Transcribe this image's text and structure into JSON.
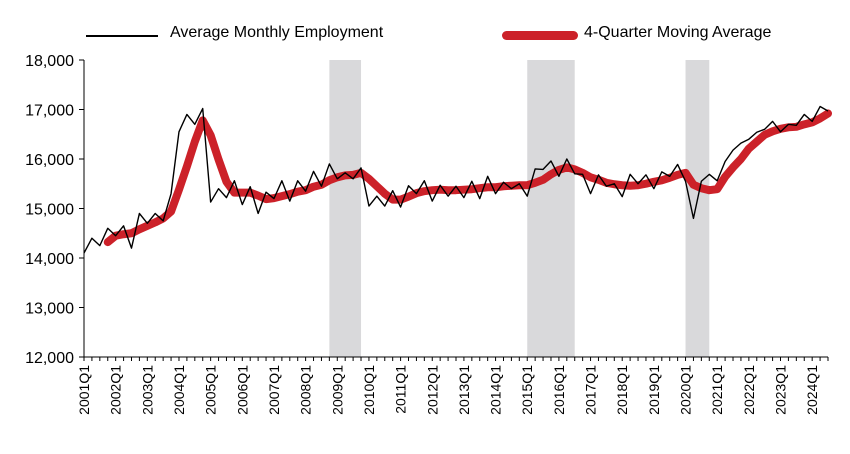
{
  "chart_data": {
    "type": "line",
    "xlabel": "",
    "ylabel": "",
    "ylim": [
      12000,
      18000
    ],
    "yticks": [
      "12,000",
      "13,000",
      "14,000",
      "15,000",
      "16,000",
      "17,000",
      "18,000"
    ],
    "ytick_values": [
      12000,
      13000,
      14000,
      15000,
      16000,
      17000,
      18000
    ],
    "xticks": [
      "2001Q1",
      "2002Q1",
      "2003Q1",
      "2004Q1",
      "2005Q1",
      "2006Q1",
      "2007Q1",
      "2008Q1",
      "2009Q1",
      "2010Q1",
      "2011Q1",
      "2012Q1",
      "2013Q1",
      "2014Q1",
      "2015Q1",
      "2016Q1",
      "2017Q1",
      "2018Q1",
      "2019Q1",
      "2020Q1",
      "2021Q1",
      "2022Q1",
      "2023Q1",
      "2024Q1"
    ],
    "legend_position": "top",
    "grid": false,
    "recession_shading": [
      {
        "start": "2008Q4",
        "end": "2009Q4"
      },
      {
        "start": "2015Q1",
        "end": "2016Q3"
      },
      {
        "start": "2020Q1",
        "end": "2020Q4"
      }
    ],
    "series": [
      {
        "name": "Average Monthly Employment",
        "color": "#000000",
        "values": [
          14100,
          14400,
          14250,
          14600,
          14450,
          14650,
          14200,
          14900,
          14700,
          14900,
          14750,
          15300,
          16550,
          16900,
          16700,
          17020,
          15130,
          15400,
          15220,
          15560,
          15080,
          15440,
          14900,
          15330,
          15200,
          15560,
          15150,
          15560,
          15350,
          15750,
          15450,
          15900,
          15600,
          15720,
          15600,
          15820,
          15050,
          15250,
          15050,
          15360,
          15030,
          15460,
          15300,
          15560,
          15150,
          15470,
          15250,
          15450,
          15220,
          15550,
          15200,
          15650,
          15300,
          15530,
          15400,
          15500,
          15250,
          15800,
          15790,
          15960,
          15650,
          16000,
          15700,
          15690,
          15300,
          15680,
          15450,
          15500,
          15240,
          15690,
          15500,
          15680,
          15400,
          15740,
          15650,
          15890,
          15550,
          14800,
          15550,
          15690,
          15560,
          15950,
          16180,
          16320,
          16400,
          16540,
          16600,
          16760,
          16550,
          16700,
          16680,
          16900,
          16760,
          17060,
          16970
        ]
      },
      {
        "name": "4-Quarter Moving Average",
        "color": "#cc2129",
        "values": [
          null,
          null,
          null,
          14320,
          14450,
          14480,
          14500,
          14580,
          14650,
          14720,
          14800,
          14940,
          15380,
          15850,
          16350,
          16780,
          16480,
          15990,
          15540,
          15320,
          15320,
          15320,
          15260,
          15190,
          15210,
          15250,
          15290,
          15340,
          15370,
          15440,
          15480,
          15570,
          15630,
          15670,
          15680,
          15720,
          15600,
          15450,
          15300,
          15180,
          15180,
          15240,
          15310,
          15350,
          15370,
          15380,
          15370,
          15370,
          15380,
          15390,
          15410,
          15430,
          15430,
          15450,
          15460,
          15470,
          15470,
          15520,
          15580,
          15690,
          15780,
          15830,
          15790,
          15720,
          15630,
          15580,
          15520,
          15490,
          15470,
          15460,
          15470,
          15500,
          15540,
          15570,
          15620,
          15680,
          15720,
          15480,
          15410,
          15370,
          15390,
          15640,
          15830,
          16000,
          16210,
          16350,
          16490,
          16560,
          16610,
          16640,
          16650,
          16700,
          16740,
          16820,
          16920
        ]
      }
    ]
  }
}
